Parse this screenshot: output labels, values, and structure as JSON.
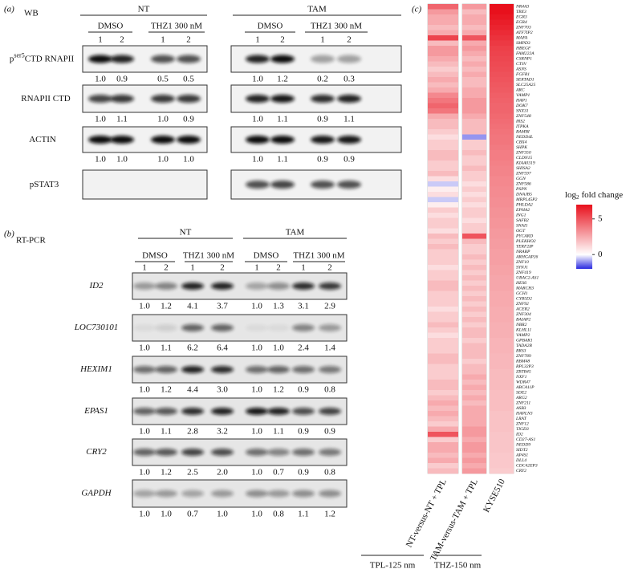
{
  "panel_a": {
    "label": "(a)",
    "method": "WB",
    "groups": [
      {
        "name": "NT",
        "treatments": [
          "DMSO",
          "THZ1 300 nM"
        ],
        "lanes": [
          "1",
          "2",
          "1",
          "2"
        ]
      },
      {
        "name": "TAM",
        "treatments": [
          "DMSO",
          "THZ1 300 nM"
        ],
        "lanes": [
          "1",
          "2",
          "1",
          "2"
        ]
      }
    ],
    "rows": [
      {
        "label": "p",
        "label_sup": "ser5",
        "label_rest": "CTD RNAPII",
        "values": [
          [
            "1.0",
            "0.9",
            "0.5",
            "0.5"
          ],
          [
            "1.0",
            "1.2",
            "0.2",
            "0.3"
          ]
        ]
      },
      {
        "label": "RNAPII CTD",
        "values": [
          [
            "1.0",
            "1.1",
            "1.0",
            "0.9"
          ],
          [
            "1.0",
            "1.1",
            "0.9",
            "1.1"
          ]
        ]
      },
      {
        "label": "ACTIN",
        "values": [
          [
            "1.0",
            "1.0",
            "1.0",
            "1.0"
          ],
          [
            "1.0",
            "1.1",
            "0.9",
            "0.9"
          ]
        ]
      },
      {
        "label": "pSTAT3"
      }
    ]
  },
  "panel_b": {
    "label": "(b)",
    "method": "RT-PCR",
    "groups": [
      {
        "name": "NT",
        "treatments": [
          "DMSO",
          "THZ1 300 nM"
        ],
        "lanes": [
          "1",
          "2",
          "1",
          "2"
        ]
      },
      {
        "name": "TAM",
        "treatments": [
          "DMSO",
          "THZ1 300 nM"
        ],
        "lanes": [
          "1",
          "2",
          "1",
          "2"
        ]
      }
    ],
    "rows": [
      {
        "label": "ID2",
        "values": [
          [
            "1.0",
            "1.2",
            "4.1",
            "3.7"
          ],
          [
            "1.0",
            "1.3",
            "3.1",
            "2.9"
          ]
        ]
      },
      {
        "label": "LOC730101",
        "values": [
          [
            "1.0",
            "1.1",
            "6.2",
            "6.4"
          ],
          [
            "1.0",
            "1.0",
            "2.4",
            "1.4"
          ]
        ]
      },
      {
        "label": "HEXIM1",
        "values": [
          [
            "1.0",
            "1.2",
            "4.4",
            "3.0"
          ],
          [
            "1.0",
            "1.2",
            "0.9",
            "0.8"
          ]
        ]
      },
      {
        "label": "EPAS1",
        "values": [
          [
            "1.0",
            "1.1",
            "2.8",
            "3.2"
          ],
          [
            "1.0",
            "1.1",
            "0.9",
            "0.9"
          ]
        ]
      },
      {
        "label": "CRY2",
        "values": [
          [
            "1.0",
            "1.2",
            "2.5",
            "2.0"
          ],
          [
            "1.0",
            "0.7",
            "0.9",
            "0.8"
          ]
        ]
      },
      {
        "label": "GAPDH",
        "values": [
          [
            "1.0",
            "1.0",
            "0.7",
            "1.0"
          ],
          [
            "1.0",
            "0.8",
            "1.1",
            "1.2"
          ]
        ]
      }
    ]
  },
  "panel_c": {
    "label": "(c)",
    "genes": [
      "NR4A3",
      "TBX3",
      "EGR3",
      "EGR4",
      "ZNF703",
      "ATF7IP2",
      "MAFA",
      "SMPD3",
      "HBEGF",
      "FAM222A",
      "CSRNP1",
      "CTSV",
      "ASNS",
      "FGFR1",
      "SERTAD1",
      "SLC25A25",
      "ARC",
      "VAMP1",
      "HAP1",
      "DOK7",
      "SNX31",
      "ZNF548",
      "IRS2",
      "ITPKA",
      "BAMBI",
      "NEDD4L",
      "CBX4",
      "SHPK",
      "ZNF350",
      "CLDN15",
      "KIAA0319",
      "SHISA2",
      "ZNF597",
      "GGN",
      "ZNF586",
      "PSPN",
      "DNAJB5",
      "MRPL45P2",
      "PHLDA2",
      "EPHA2",
      "ING1",
      "SAFB2",
      "SNAI1",
      "OGT",
      "PYCARD",
      "PLEKHO2",
      "TERF2IP",
      "NRARP",
      "ARHGAP26",
      "ZNF10",
      "SYNJ1",
      "ZNF419",
      "UBAC2-AS1",
      "HES6",
      "MARCH3",
      "GCH1",
      "CYB5D2",
      "ZNF92",
      "ACER2",
      "ZNF304",
      "BAIAP2",
      "NBR2",
      "KLHL11",
      "VAMP2",
      "GPBAR1",
      "TADA2B",
      "BRS3",
      "ZNF789",
      "RBM48",
      "RPL32P3",
      "ZBTB45",
      "NXF1",
      "WDR47",
      "ABCA11P",
      "SDE2",
      "ARG2",
      "ZNF211",
      "ASB3",
      "HAPLN3",
      "LRAT",
      "ZNF12",
      "TIGD3",
      "ID2",
      "CD27-AS1",
      "NEDD9",
      "SIDT2",
      "AP4S1",
      "DLL4",
      "CDC42EP3",
      "CRY2"
    ],
    "columns": [
      {
        "name": "NT-versus-NT + TPL",
        "values": [
          4.5,
          3,
          2.5,
          2.5,
          2,
          2.5,
          5.5,
          2,
          3,
          3,
          2.5,
          2,
          1.5,
          2,
          2.5,
          2,
          2.5,
          3.5,
          4,
          4.5,
          4,
          2.5,
          2,
          2,
          1.5,
          1,
          1.5,
          1.5,
          2,
          2,
          1.5,
          1.5,
          2,
          1,
          -0.5,
          0.5,
          1,
          -0.5,
          0.5,
          1.5,
          1,
          1.5,
          1.5,
          1,
          2,
          1.5,
          2,
          1.5,
          1.5,
          1.5,
          1,
          1.5,
          1.5,
          2,
          2,
          1.5,
          1.5,
          1.5,
          1,
          1.5,
          1.5,
          2,
          1.5,
          1,
          1.5,
          1.5,
          1.5,
          2,
          2,
          1.5,
          1.5,
          1.5,
          2,
          2,
          1.5,
          2,
          2.5,
          2,
          2.5,
          2,
          1.5,
          2.5,
          5,
          1.5,
          2.5,
          2.5,
          2,
          2.5,
          1.5,
          2
        ]
      },
      {
        "name": "TAM-versus-TAM + TPL",
        "values": [
          3,
          2,
          2.5,
          2.5,
          2,
          2.5,
          5,
          2.5,
          3,
          2.5,
          2,
          2.5,
          2,
          2.5,
          2,
          2,
          2.5,
          2.5,
          3,
          3,
          3,
          2.5,
          2,
          2,
          2,
          -1,
          1.5,
          1.5,
          2,
          1.5,
          1.5,
          2,
          1.5,
          1.5,
          1,
          1.5,
          1,
          1.5,
          1,
          1.5,
          1.5,
          1,
          1.5,
          1.5,
          5,
          2,
          1.5,
          1.5,
          2,
          1.5,
          2,
          1.5,
          2,
          1.5,
          2,
          1.5,
          2,
          1.5,
          2,
          1.5,
          2,
          1.5,
          2,
          2,
          1.5,
          2,
          2,
          2,
          1.5,
          2,
          2,
          2.5,
          2,
          2.5,
          2,
          2.5,
          2,
          2.5,
          2.5,
          2.5,
          2.5,
          3,
          3,
          2.5,
          3,
          3,
          2.5,
          3,
          2.5,
          3
        ]
      },
      {
        "name": "KYSE510",
        "values": [
          7,
          7,
          6.8,
          6.6,
          6.4,
          6.2,
          6,
          5.8,
          5.6,
          5.5,
          5.4,
          5.3,
          5.2,
          5.1,
          5,
          4.9,
          4.8,
          4.7,
          4.6,
          4.5,
          4.5,
          4.4,
          4.3,
          4.2,
          4.1,
          4,
          4,
          3.9,
          3.8,
          3.8,
          3.7,
          3.6,
          3.6,
          3.5,
          3.5,
          3.4,
          3.4,
          3.3,
          3.3,
          3.2,
          3.2,
          3.1,
          3.1,
          3,
          3,
          2.9,
          2.9,
          2.8,
          2.8,
          2.8,
          2.7,
          2.7,
          2.6,
          2.6,
          2.6,
          2.5,
          2.5,
          2.5,
          2.4,
          2.4,
          2.4,
          2.3,
          2.3,
          2.3,
          2.2,
          2.2,
          2.2,
          2.1,
          2.1,
          2.1,
          2,
          2,
          2,
          2,
          1.9,
          1.9,
          1.9,
          1.9,
          1.8,
          1.8,
          1.8,
          1.8,
          1.7,
          1.7,
          1.7,
          1.7,
          1.6,
          1.6,
          1.6,
          1.5
        ]
      }
    ],
    "groups": [
      {
        "name": "TPL-125 nm"
      },
      {
        "name": "THZ-150 nm"
      }
    ],
    "legend": {
      "title": "log",
      "title_sub": "2",
      "title_rest": "fold change",
      "clim": [
        -2,
        7
      ],
      "ticks": [
        5,
        0
      ],
      "colors": [
        "#2a2ae0",
        "#ffffff",
        "#e8101c"
      ]
    }
  }
}
